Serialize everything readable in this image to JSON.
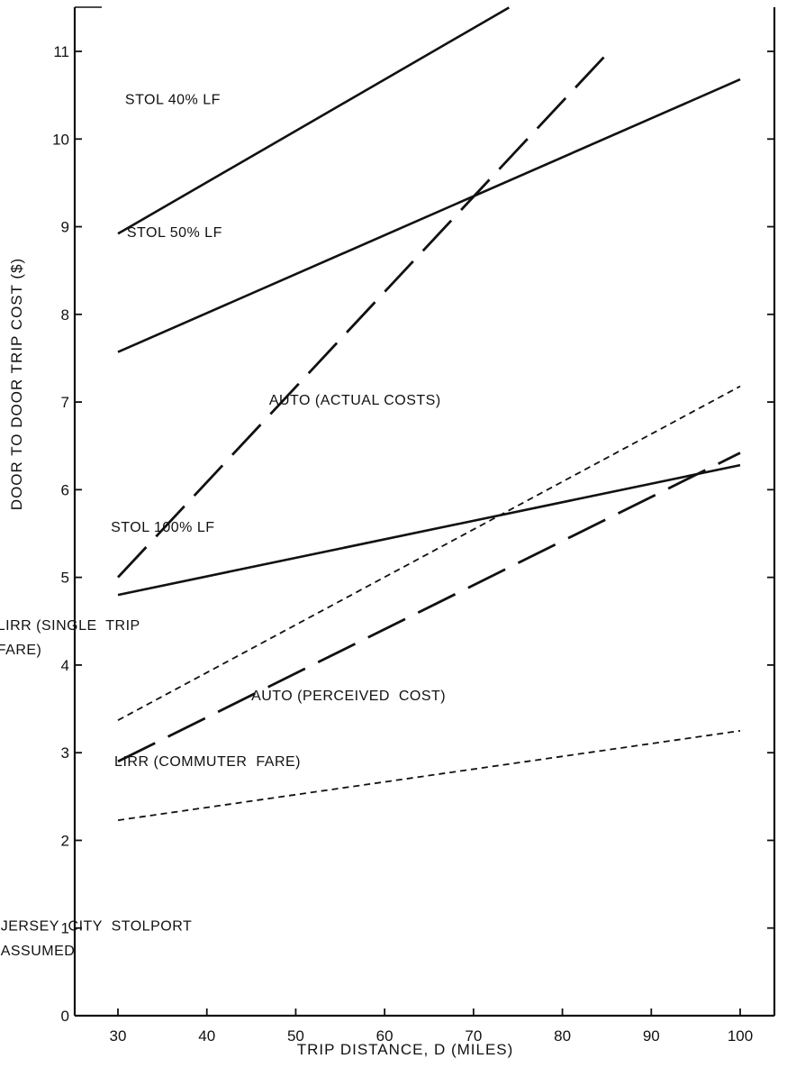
{
  "chart_data": {
    "type": "line",
    "title": "",
    "xlabel": "TRIP DISTANCE, D (MILES)",
    "ylabel": "DOOR TO DOOR TRIP COST ($)",
    "xlim": [
      25,
      103
    ],
    "ylim": [
      0,
      11.5
    ],
    "xticks": [
      30,
      40,
      50,
      60,
      70,
      80,
      90,
      100
    ],
    "yticks": [
      0,
      1,
      2,
      3,
      4,
      5,
      6,
      7,
      8,
      9,
      10,
      11
    ],
    "grid": false,
    "series": [
      {
        "name": "STOL 40% LF",
        "style": "solid",
        "x": [
          30,
          74
        ],
        "y": [
          8.92,
          11.5
        ]
      },
      {
        "name": "STOL 50% LF",
        "style": "solid",
        "x": [
          30,
          100
        ],
        "y": [
          7.57,
          10.68
        ]
      },
      {
        "name": "STOL 100% LF",
        "style": "solid",
        "x": [
          30,
          100
        ],
        "y": [
          4.8,
          6.28
        ]
      },
      {
        "name": "AUTO (ACTUAL COSTS)",
        "style": "long-dash",
        "x": [
          30,
          85
        ],
        "y": [
          5.0,
          10.97
        ]
      },
      {
        "name": "AUTO (PERCEIVED COST)",
        "style": "long-dash",
        "x": [
          30,
          100
        ],
        "y": [
          2.9,
          6.42
        ]
      },
      {
        "name": "LIRR (SINGLE TRIP FARE)",
        "style": "short-dash",
        "x": [
          30,
          100
        ],
        "y": [
          3.37,
          7.18
        ]
      },
      {
        "name": "LIRR (COMMUTER FARE)",
        "style": "short-dash",
        "x": [
          30,
          100
        ],
        "y": [
          2.23,
          3.25
        ]
      }
    ],
    "annotations": [
      {
        "text": "STOL 40% LF",
        "x": 30.8,
        "y": 10.4
      },
      {
        "text": "STOL 50% LF",
        "x": 31.0,
        "y": 8.88
      },
      {
        "text": "AUTO (ACTUAL COSTS)",
        "x": 47.0,
        "y": 6.97
      },
      {
        "text": "STOL 100% LF",
        "x": 29.2,
        "y": 5.52
      },
      {
        "text": "LIRR (SINGLE  TRIP",
        "x": 16.4,
        "y": 4.4
      },
      {
        "text": "FARE)",
        "x": 16.4,
        "y": 4.12
      },
      {
        "text": "AUTO (PERCEIVED  COST)",
        "x": 45.0,
        "y": 3.6
      },
      {
        "text": "LIRR (COMMUTER  FARE)",
        "x": 29.6,
        "y": 2.85
      },
      {
        "text": "JERSEY  CITY  STOLPORT",
        "x": 16.8,
        "y": 0.97
      },
      {
        "text": "ASSUMED",
        "x": 16.8,
        "y": 0.69
      }
    ]
  }
}
